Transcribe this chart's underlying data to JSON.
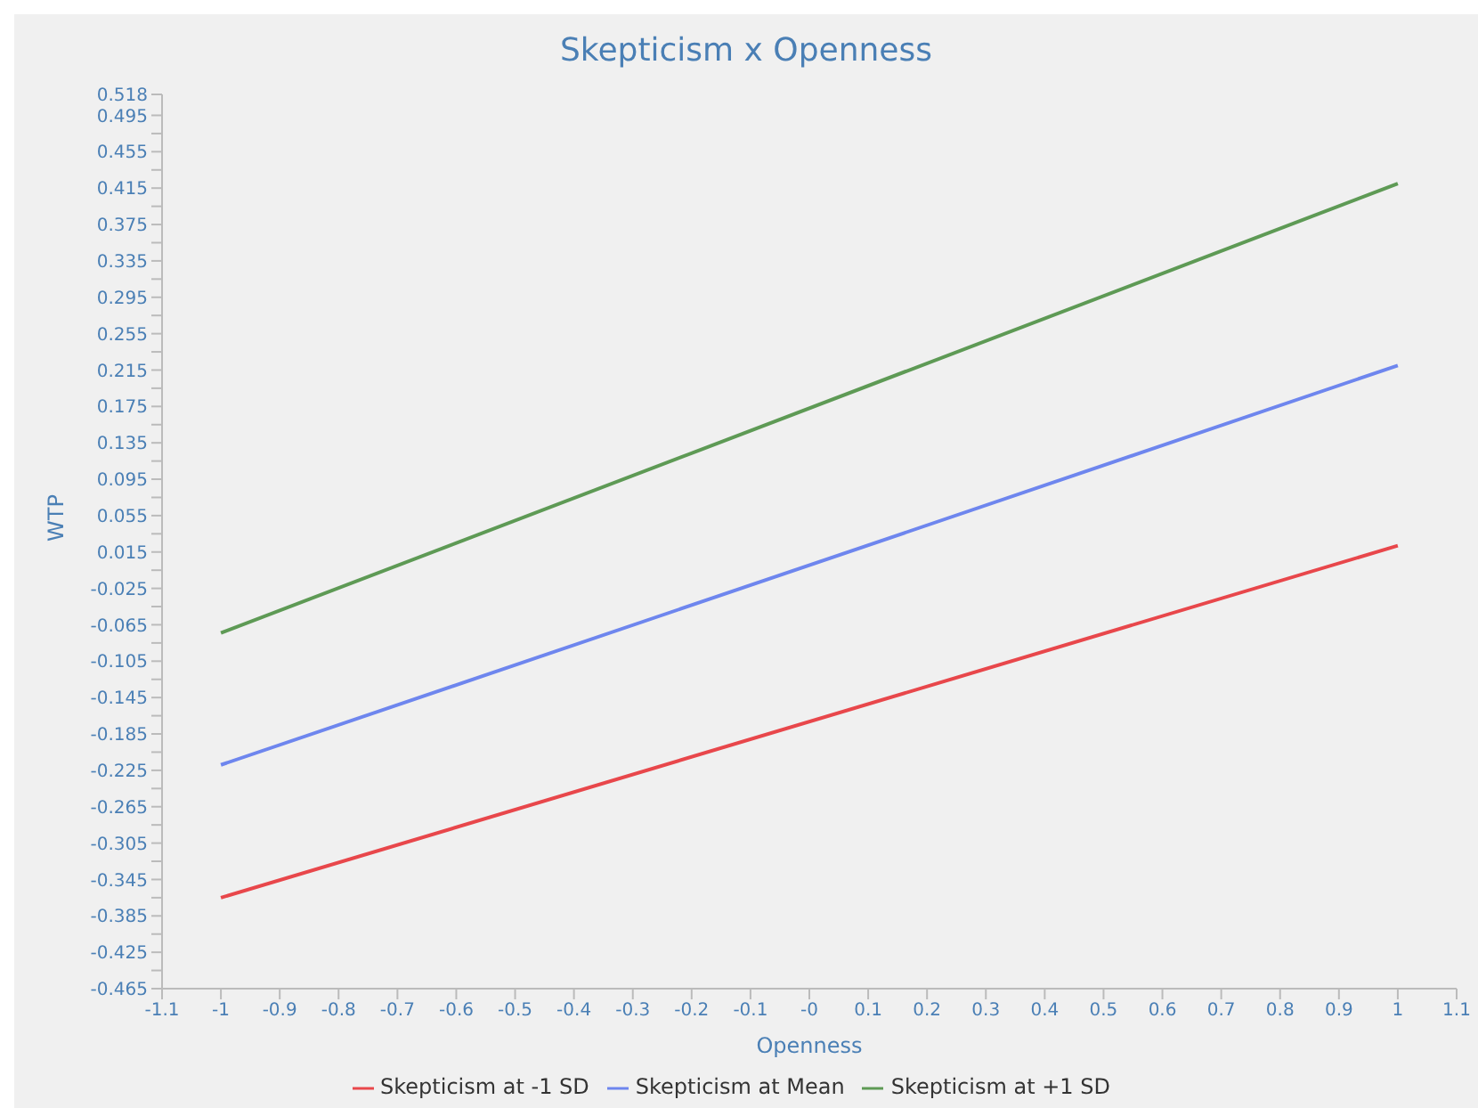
{
  "chart_data": {
    "type": "line",
    "title": "Skepticism x Openness",
    "xlabel": "Openness",
    "ylabel": "WTP",
    "x": [
      -1,
      1
    ],
    "series": [
      {
        "name": "Skepticism at -1 SD",
        "color": "#e8474b",
        "values": [
          -0.365,
          0.022
        ]
      },
      {
        "name": "Skepticism at Mean",
        "color": "#6e86ee",
        "values": [
          -0.219,
          0.22
        ]
      },
      {
        "name": "Skepticism at +1 SD",
        "color": "#5e9a55",
        "values": [
          -0.074,
          0.42
        ]
      }
    ],
    "xlim": [
      -1.1,
      1.1
    ],
    "xticks": [
      -1.1,
      -1,
      -0.9,
      -0.8,
      -0.7,
      -0.6,
      -0.5,
      -0.4,
      -0.3,
      -0.2,
      -0.1,
      {
        "value": 0,
        "label": "-0"
      },
      0.1,
      0.2,
      0.3,
      0.4,
      0.5,
      0.6,
      0.7,
      0.8,
      0.9,
      1,
      1.1
    ],
    "ylim": [
      -0.465,
      0.518
    ],
    "yticks": [
      -0.465,
      {
        "value": -0.445,
        "label": null
      },
      -0.425,
      {
        "value": -0.405,
        "label": null
      },
      -0.385,
      {
        "value": -0.365,
        "label": null
      },
      -0.345,
      {
        "value": -0.325,
        "label": null
      },
      -0.305,
      {
        "value": -0.285,
        "label": null
      },
      -0.265,
      {
        "value": -0.245,
        "label": null
      },
      -0.225,
      {
        "value": -0.205,
        "label": null
      },
      -0.185,
      {
        "value": -0.165,
        "label": null
      },
      -0.145,
      {
        "value": -0.125,
        "label": null
      },
      -0.105,
      {
        "value": -0.085,
        "label": null
      },
      -0.065,
      {
        "value": -0.045,
        "label": null
      },
      -0.025,
      {
        "value": -0.005,
        "label": null
      },
      0.015,
      {
        "value": 0.035,
        "label": null
      },
      0.055,
      {
        "value": 0.075,
        "label": null
      },
      0.095,
      {
        "value": 0.115,
        "label": null
      },
      0.135,
      {
        "value": 0.155,
        "label": null
      },
      0.175,
      {
        "value": 0.195,
        "label": null
      },
      0.215,
      {
        "value": 0.235,
        "label": null
      },
      0.255,
      {
        "value": 0.275,
        "label": null
      },
      0.295,
      {
        "value": 0.315,
        "label": null
      },
      0.335,
      {
        "value": 0.355,
        "label": null
      },
      0.375,
      {
        "value": 0.395,
        "label": null
      },
      0.415,
      {
        "value": 0.435,
        "label": null
      },
      0.455,
      {
        "value": 0.475,
        "label": null
      },
      0.495,
      0.518
    ],
    "grid": false,
    "legend": "bottom",
    "marker": "none",
    "line_style": "solid"
  }
}
